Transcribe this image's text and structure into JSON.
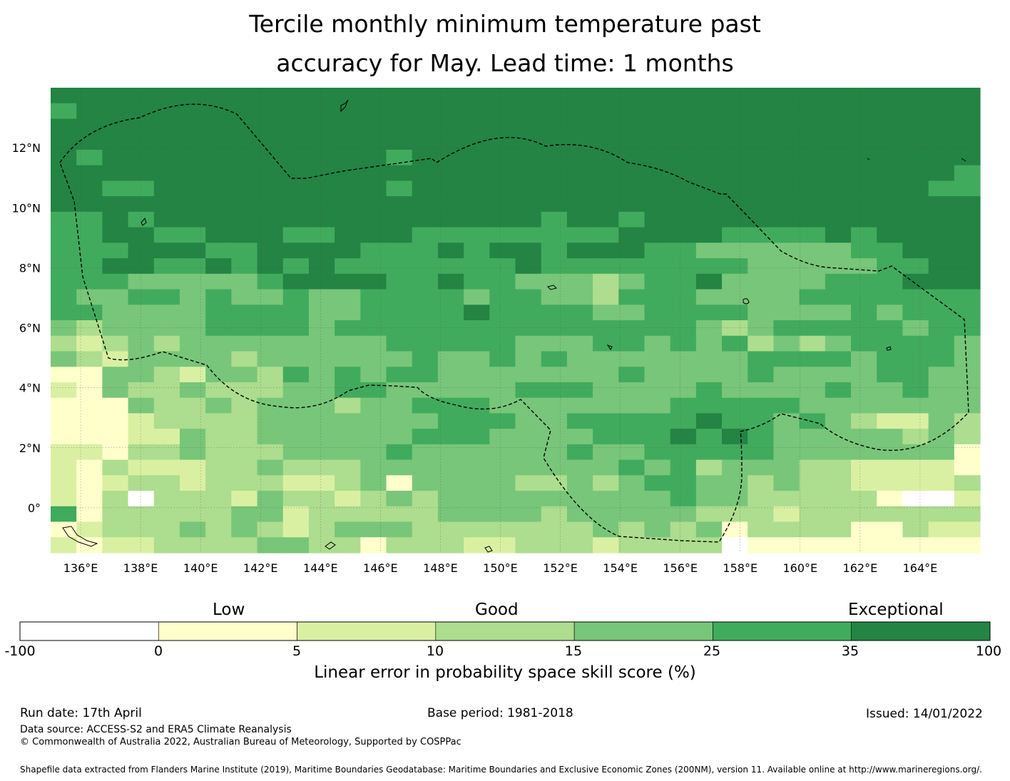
{
  "title_line1": "Tercile monthly minimum temperature past",
  "title_line2": "accuracy for May. Lead time: 1 months",
  "map": {
    "lon_range": [
      135.0,
      166.0
    ],
    "lat_range": [
      -1.5,
      14.0
    ],
    "lon_ticks": [
      "136°E",
      "138°E",
      "140°E",
      "142°E",
      "144°E",
      "146°E",
      "148°E",
      "150°E",
      "152°E",
      "154°E",
      "156°E",
      "158°E",
      "160°E",
      "162°E",
      "164°E"
    ],
    "lat_ticks": [
      "0°",
      "2°N",
      "4°N",
      "6°N",
      "8°N",
      "10°N",
      "12°N"
    ],
    "grid": true,
    "eez_boundary": "dashed black line",
    "grid_spec_note": "Skill score class index per 0.833° grid cell; north rows first"
  },
  "categories": {
    "low": "Low",
    "good": "Good",
    "exceptional": "Exceptional"
  },
  "colorbar": {
    "ticks": [
      "-100",
      "0",
      "5",
      "10",
      "15",
      "25",
      "35",
      "100"
    ],
    "colors": [
      "#ffffff",
      "#ffffcc",
      "#d9f0a3",
      "#addd8e",
      "#78c679",
      "#41ab5d",
      "#238443"
    ],
    "title": "Linear error in probability space skill score (%)"
  },
  "footer": {
    "run_date": "Run date: 17th April",
    "base_period": "Base period: 1981-2018",
    "issued": "Issued: 14/01/2022",
    "data_source": "Data source: ACCESS-S2 and ERA5 Climate Reanalysis",
    "copyright": "© Commonwealth of Australia 2022, Australian Bureau of Meteorology, Supported by COSPPac",
    "shapefile": "Shapefile data extracted from Flanders Marine Institute (2019), Maritime Boundaries Geodatabase: Maritime Boundaries and Exclusive Economic Zones (200NM), version 11. Available online at http://www.marineregions.org/."
  },
  "chart_data": {
    "type": "heatmap",
    "title": "Tercile monthly minimum temperature past accuracy for May. Lead time: 1 months",
    "xlabel": "",
    "ylabel": "",
    "x_range": [
      135.0,
      166.0
    ],
    "y_range": [
      -1.5,
      14.0
    ],
    "class_breaks": [
      -100,
      0,
      5,
      10,
      15,
      25,
      35,
      100
    ],
    "class_labels": [
      "Low",
      "Good",
      "Exceptional"
    ],
    "rows": [
      "666666666666666666666666666666666666",
      "566666666666666666666666666666666666",
      "666666666666666666666666666666666666",
      "666666666666666666666666666666666666",
      "656666666666656666666666666666666666",
      "666666666666666666666666666666666665",
      "665566666666656666666666666666666655",
      "666666666666666666666666666666666666",
      "556566666666666666656656666666666666",
      "556655666556665555555566665555656666",
      "555666556666555656656665544444455666",
      "556655656565555555655555555444445566",
      "555444445666655655444345564444555666",
      "544554544544555545544355544445555555",
      "554444555544555565555445555444454555",
      "434444555545555555555555543455555455",
      "323434444444455555444554545343455554",
      "432444434444445445454444444555545554",
      "114432443545455444444454444544445544",
      "214334333445544444555444454444544544",
      "111433434443445554444444555554444444",
      "111233334444444555445555565545432243",
      "111224334444445554444555656544444343",
      "221334333444454444445445555544444441",
      "213222334333444444444454534443322221",
      "212332333223414444334345544343322223",
      "213033324332343444444444544333331002",
      "513333344233333444434444433323333333",
      "123334343234443333333434341333311322",
      "212233334433133322333233330111111111"
    ]
  }
}
